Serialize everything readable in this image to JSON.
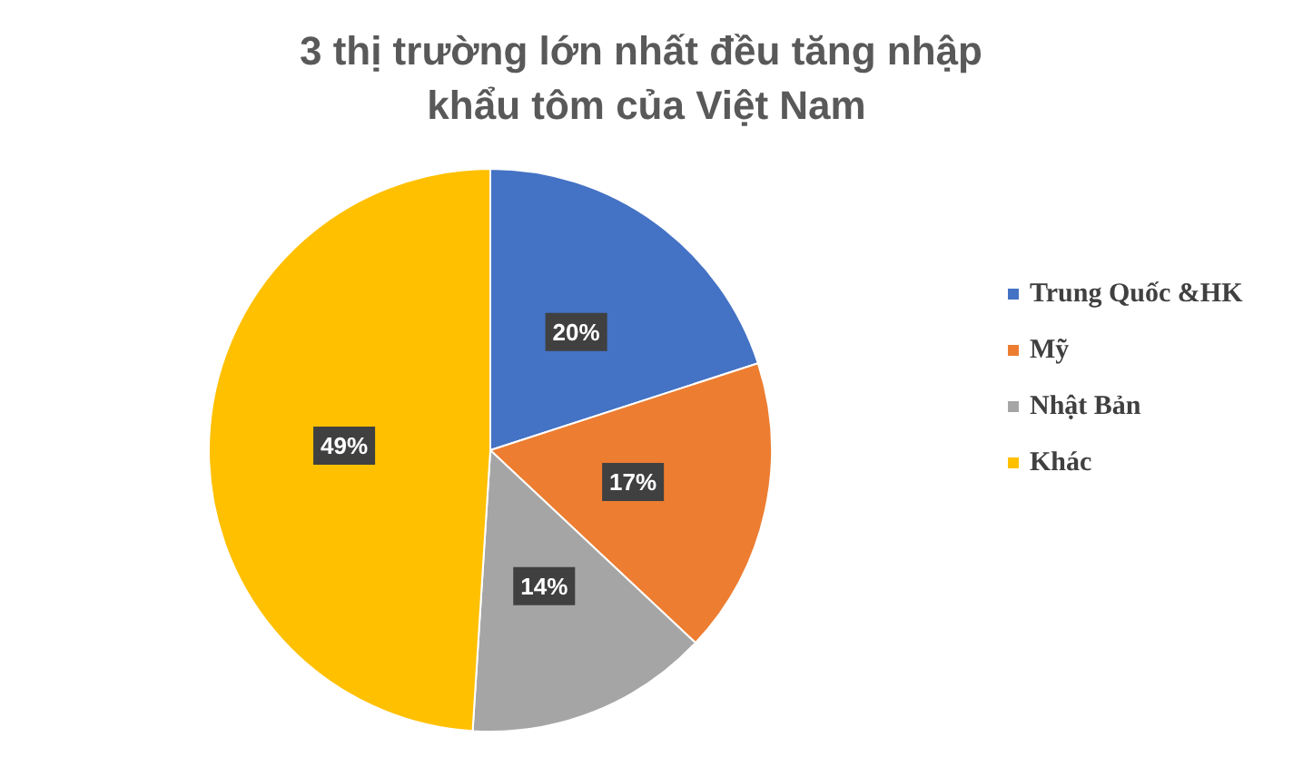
{
  "chart_data": {
    "type": "pie",
    "title": "3 thị trường lớn nhất đều tăng nhập khẩu tôm của Việt Nam",
    "categories": [
      "Trung Quốc &HK",
      "Mỹ",
      "Nhật Bản",
      "Khác"
    ],
    "values": [
      20,
      17,
      14,
      49
    ],
    "colors": [
      "#4472c4",
      "#ed7d31",
      "#a5a5a5",
      "#ffc000"
    ],
    "value_labels": [
      "20%",
      "17%",
      "14%",
      "49%"
    ],
    "legend": "right"
  }
}
